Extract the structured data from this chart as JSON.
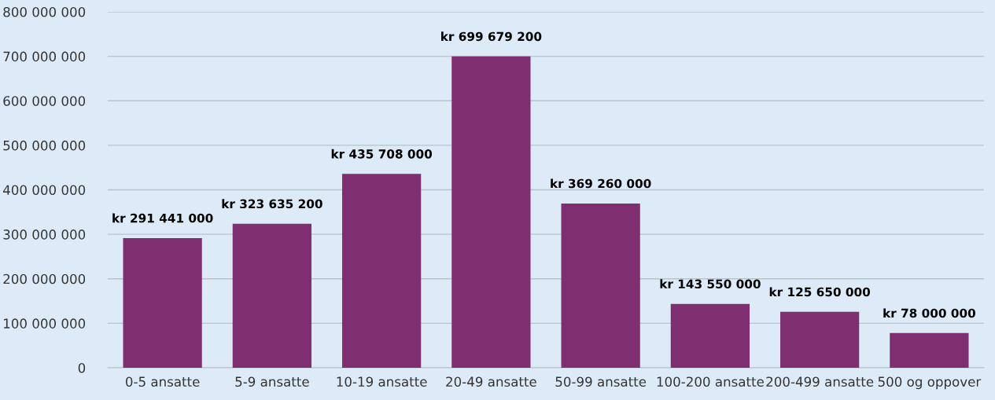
{
  "chart_data": {
    "type": "bar",
    "categories": [
      "0-5 ansatte",
      "5-9 ansatte",
      "10-19 ansatte",
      "20-49 ansatte",
      "50-99 ansatte",
      "100-200 ansatte",
      "200-499 ansatte",
      "500 og oppover"
    ],
    "values": [
      291441000,
      323635200,
      435708000,
      699679200,
      369260000,
      143550000,
      125650000,
      78000000
    ],
    "value_labels": [
      "kr 291 441 000",
      "kr 323 635 200",
      "kr 435 708 000",
      "kr 699 679 200",
      "kr 369 260 000",
      "kr 143 550 000",
      "kr 125 650 000",
      "kr 78 000 000"
    ],
    "color": "#7f2f6f",
    "ylim": [
      0,
      800000000
    ],
    "yticks": [
      0,
      {
        "value": 100000000,
        "label": "100 000 000"
      },
      {
        "value": 200000000,
        "label": "200 000 000"
      },
      {
        "value": 300000000,
        "label": "300 000 000"
      },
      {
        "value": 400000000,
        "label": "400 000 000"
      },
      {
        "value": 500000000,
        "label": "500 000 000"
      },
      {
        "value": 600000000,
        "label": "600 000 000"
      },
      {
        "value": 700000000,
        "label": "700 000 000"
      },
      {
        "value": 800000000,
        "label": "800 000 000"
      }
    ],
    "grid": "y"
  }
}
